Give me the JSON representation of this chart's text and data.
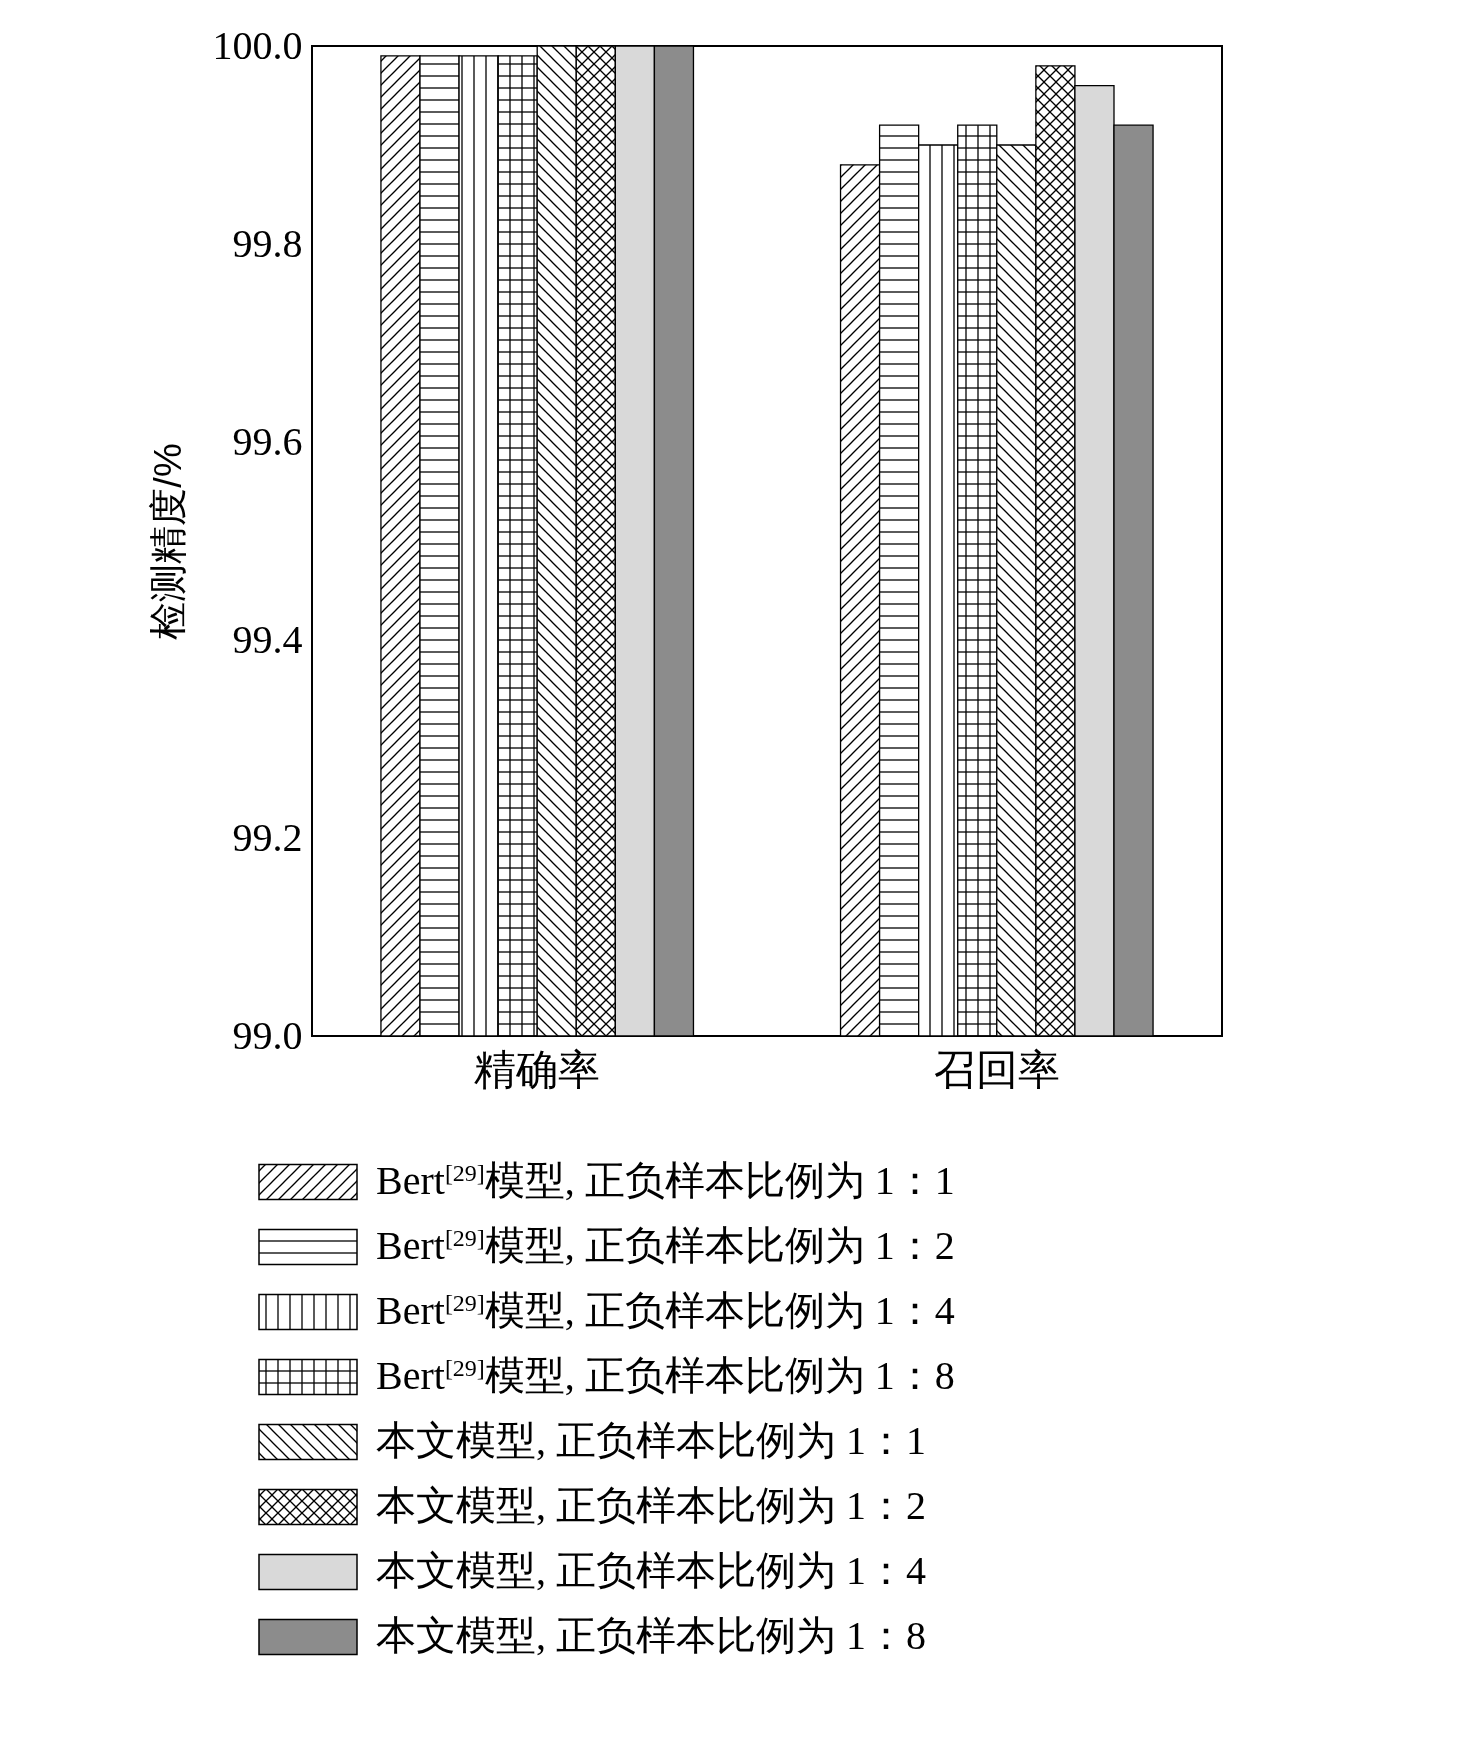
{
  "chart_data": {
    "type": "bar",
    "ylabel": "检测精度/%",
    "categories": [
      "精确率",
      "召回率"
    ],
    "ylim": [
      99.0,
      100.0
    ],
    "yticks": [
      {
        "value": 99.0,
        "label": "99.0"
      },
      {
        "value": 99.2,
        "label": "99.2"
      },
      {
        "value": 99.4,
        "label": "99.4"
      },
      {
        "value": 99.6,
        "label": "99.6"
      },
      {
        "value": 99.8,
        "label": "99.8"
      },
      {
        "value": 100.0,
        "label": "100.0"
      }
    ],
    "grid": false,
    "legend": "bottom",
    "series": [
      {
        "name": "Bert$^{[29]}$模型, 正负样本比例为 1：1",
        "color": "#ffffff",
        "values": [
          99.99,
          99.88
        ]
      },
      {
        "name": "Bert$^{[29]}$模型, 正负样本比例为 1：2",
        "color": "#ffffff",
        "values": [
          99.99,
          99.92
        ]
      },
      {
        "name": "Bert$^{[29]}$模型, 正负样本比例为 1：4",
        "color": "#ffffff",
        "values": [
          99.99,
          99.9
        ]
      },
      {
        "name": "Bert$^{[29]}$模型, 正负样本比例为 1：8",
        "color": "#ffffff",
        "values": [
          99.99,
          99.92
        ]
      },
      {
        "name": "本文模型, 正负样本比例为 1：1",
        "color": "#ffffff",
        "values": [
          100.0,
          99.9
        ]
      },
      {
        "name": "本文模型, 正负样本比例为 1：2",
        "color": "#ffffff",
        "values": [
          100.0,
          99.98
        ]
      },
      {
        "name": "本文模型, 正负样本比例为 1：4",
        "color": "#d9d9d9",
        "values": [
          100.0,
          99.96
        ]
      },
      {
        "name": "本文模型, 正负样本比例为 1：8",
        "color": "#8c8c8c",
        "values": [
          100.0,
          99.92
        ]
      }
    ]
  }
}
